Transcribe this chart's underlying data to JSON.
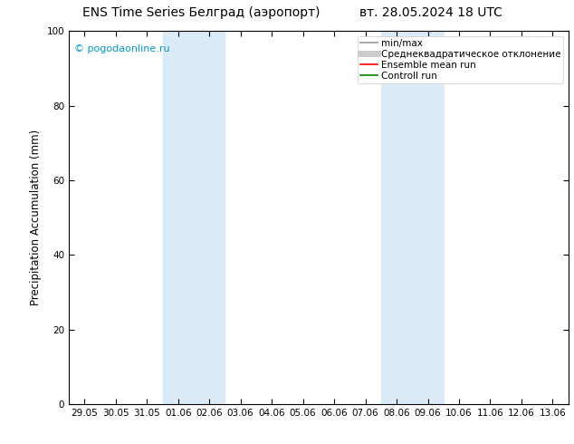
{
  "title_left": "ENS Time Series Белград (аэропорт)",
  "title_right": "вт. 28.05.2024 18 UTC",
  "ylabel": "Precipitation Accumulation (mm)",
  "watermark": "© pogodaonline.ru",
  "ylim": [
    0,
    100
  ],
  "yticks": [
    0,
    20,
    40,
    60,
    80,
    100
  ],
  "xtick_labels": [
    "29.05",
    "30.05",
    "31.05",
    "01.06",
    "02.06",
    "03.06",
    "04.06",
    "05.06",
    "06.06",
    "07.06",
    "08.06",
    "09.06",
    "10.06",
    "11.06",
    "12.06",
    "13.06"
  ],
  "shaded_bands": [
    {
      "xstart": 3,
      "xend": 5,
      "color": "#daeaf7"
    },
    {
      "xstart": 10,
      "xend": 12,
      "color": "#daeaf7"
    }
  ],
  "legend_items": [
    {
      "label": "min/max",
      "color": "#999999",
      "lw": 1.2,
      "style": "solid"
    },
    {
      "label": "Среднеквадратическое отклонение",
      "color": "#cccccc",
      "lw": 5,
      "style": "solid"
    },
    {
      "label": "Ensemble mean run",
      "color": "#ff0000",
      "lw": 1.2,
      "style": "solid"
    },
    {
      "label": "Controll run",
      "color": "#008800",
      "lw": 1.2,
      "style": "solid"
    }
  ],
  "grid_color": "#cccccc",
  "bg_color": "#ffffff",
  "watermark_color": "#0099cc",
  "title_fontsize": 10,
  "axis_fontsize": 8.5,
  "tick_fontsize": 7.5,
  "legend_fontsize": 7.5
}
